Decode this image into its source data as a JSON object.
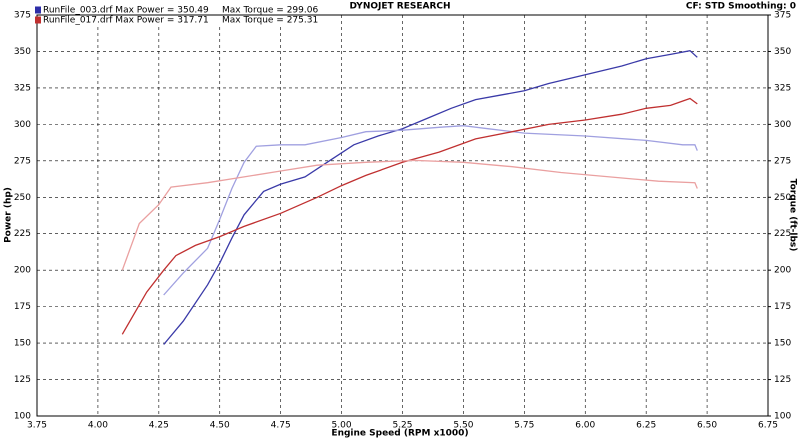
{
  "chart_data": {
    "type": "line",
    "title": "DYNOJET RESEARCH",
    "subtitle": "CF: STD  Smoothing: 0",
    "x_label": "Engine Speed (RPM x1000)",
    "y_label": "Power (hp)",
    "y2_label": "Torque (ft-lbs)",
    "legend": [
      {
        "color": "#2e2ea8",
        "power_text": "RunFile_003.drf Max Power = 350.49",
        "torque_text": "Max Torque = 299.06"
      },
      {
        "color": "#c03030",
        "power_text": "RunFile_017.drf Max Power = 317.71",
        "torque_text": "Max Torque = 275.31"
      }
    ],
    "grid": true,
    "xlim": [
      3.75,
      6.75
    ],
    "xticks": [
      3.75,
      {
        "value": 4,
        "label": "4.00"
      },
      4.25,
      {
        "value": 4.5,
        "label": "4.50"
      },
      4.75,
      {
        "value": 5,
        "label": "5.00"
      },
      5.25,
      {
        "value": 5.5,
        "label": "5.50"
      },
      5.75,
      {
        "value": 6,
        "label": "6.00"
      },
      6.25,
      {
        "value": 6.5,
        "label": "6.50"
      },
      6.75
    ],
    "ylim": [
      100,
      375
    ],
    "yticks": [
      100,
      125,
      150,
      175,
      200,
      225,
      250,
      275,
      300,
      325,
      350,
      375
    ],
    "y2lim": [
      100,
      375
    ],
    "y2ticks": [
      100,
      125,
      150,
      175,
      200,
      225,
      250,
      275,
      300,
      325,
      350,
      375
    ],
    "series": [
      {
        "color": "#3a3aa8",
        "x": [
          4.27,
          4.35,
          4.45,
          4.5,
          4.55,
          4.6,
          4.68,
          4.75,
          4.85,
          4.95,
          5.05,
          5.15,
          5.25,
          5.35,
          5.45,
          5.55,
          5.65,
          5.75,
          5.85,
          6.0,
          6.15,
          6.25,
          6.35,
          6.43,
          6.46
        ],
        "values": [
          149,
          165,
          190,
          205,
          222,
          238,
          254,
          259,
          264,
          275,
          286,
          292,
          297,
          304,
          311,
          317,
          320,
          323,
          328,
          334,
          340,
          345,
          348,
          350.49,
          346
        ]
      },
      {
        "color": "#a0a0e0",
        "axis": "y2",
        "x": [
          4.27,
          4.35,
          4.45,
          4.5,
          4.55,
          4.6,
          4.65,
          4.75,
          4.85,
          5.0,
          5.1,
          5.25,
          5.4,
          5.5,
          5.6,
          5.75,
          6.0,
          6.25,
          6.4,
          6.45,
          6.46
        ],
        "values": [
          183,
          198,
          215,
          235,
          256,
          274,
          285,
          286,
          286,
          291,
          295,
          296,
          298,
          299.06,
          297,
          294,
          292,
          289,
          286,
          286,
          282
        ]
      },
      {
        "color": "#c03030",
        "x": [
          4.1,
          4.2,
          4.27,
          4.32,
          4.4,
          4.5,
          4.6,
          4.75,
          4.9,
          5.0,
          5.1,
          5.25,
          5.4,
          5.55,
          5.7,
          5.85,
          6.0,
          6.15,
          6.25,
          6.35,
          6.43,
          6.46
        ],
        "values": [
          156,
          185,
          200,
          210,
          217,
          223,
          230,
          239,
          250,
          258,
          265,
          274,
          281,
          290,
          295,
          300,
          303,
          307,
          311,
          313,
          317.71,
          314
        ]
      },
      {
        "color": "#eaa0a0",
        "axis": "y2",
        "x": [
          4.1,
          4.17,
          4.25,
          4.3,
          4.45,
          4.6,
          4.75,
          4.9,
          5.1,
          5.3,
          5.5,
          5.7,
          5.9,
          6.1,
          6.3,
          6.45,
          6.46
        ],
        "values": [
          200,
          232,
          245,
          257,
          260,
          264,
          268,
          272,
          274,
          275.31,
          274,
          271,
          267,
          264,
          261,
          260,
          256
        ]
      }
    ]
  }
}
